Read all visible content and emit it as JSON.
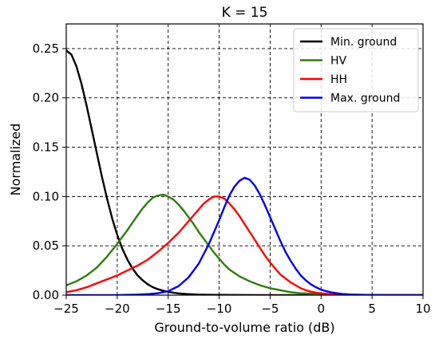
{
  "chart_data": {
    "type": "line",
    "title": "K = 15",
    "xlabel": "Ground-to-volume ratio (dB)",
    "ylabel": "Normalized",
    "xlim": [
      -25,
      10
    ],
    "ylim": [
      0,
      0.275
    ],
    "x_ticks": [
      -25,
      -20,
      -15,
      -10,
      -5,
      0,
      5,
      10
    ],
    "x_tick_labels": [
      "−25",
      "−20",
      "−15",
      "−10",
      "−5",
      "0",
      "5",
      "10"
    ],
    "y_ticks": [
      0,
      0.05,
      0.1,
      0.15,
      0.2,
      0.25
    ],
    "y_tick_labels": [
      "0.00",
      "0.05",
      "0.10",
      "0.15",
      "0.20",
      "0.25"
    ],
    "grid": true,
    "legend_position": "top-right",
    "series": [
      {
        "name": "Min. ground",
        "color": "#000000",
        "x": [
          -25,
          -24.5,
          -24,
          -23.5,
          -23,
          -22.5,
          -22,
          -21.5,
          -21,
          -20.5,
          -20,
          -19.5,
          -19,
          -18.5,
          -18,
          -17.5,
          -17,
          -16.5,
          -16,
          -15.5,
          -15,
          -14,
          -13,
          -12,
          -11,
          -10,
          -8,
          -6,
          -4,
          -2,
          0,
          2,
          5,
          10
        ],
        "y": [
          0.248,
          0.244,
          0.232,
          0.214,
          0.192,
          0.168,
          0.144,
          0.12,
          0.098,
          0.078,
          0.061,
          0.047,
          0.036,
          0.027,
          0.02,
          0.015,
          0.011,
          0.008,
          0.006,
          0.0045,
          0.0033,
          0.0018,
          0.001,
          0.0005,
          0.0003,
          0.0002,
          0.0001,
          0.0,
          0.0,
          0.0,
          0.0,
          0.0,
          0.0,
          0.0
        ]
      },
      {
        "name": "HV",
        "color": "#2e7d0e",
        "x": [
          -25,
          -24,
          -23,
          -22,
          -21,
          -20,
          -19,
          -18,
          -17.5,
          -17,
          -16.5,
          -16,
          -15.5,
          -15,
          -14.5,
          -14,
          -13.5,
          -13,
          -12.5,
          -12,
          -11.5,
          -11,
          -10.5,
          -10,
          -9.5,
          -9,
          -8,
          -7,
          -6,
          -5,
          -4,
          -3,
          -2,
          -1,
          0,
          1,
          2,
          3,
          4,
          5,
          6,
          7,
          8,
          9,
          10
        ],
        "y": [
          0.01,
          0.014,
          0.02,
          0.028,
          0.039,
          0.052,
          0.066,
          0.081,
          0.088,
          0.094,
          0.099,
          0.101,
          0.102,
          0.1,
          0.097,
          0.092,
          0.086,
          0.079,
          0.072,
          0.064,
          0.057,
          0.05,
          0.043,
          0.037,
          0.031,
          0.026,
          0.019,
          0.014,
          0.01,
          0.007,
          0.005,
          0.003,
          0.002,
          0.0015,
          0.001,
          0.0006,
          0.0004,
          0.0002,
          0.0001,
          0.0,
          0.0,
          0.0,
          0.0,
          0.0,
          0.0
        ]
      },
      {
        "name": "HH",
        "color": "#ff0000",
        "x": [
          -25,
          -24,
          -23,
          -22,
          -21,
          -20,
          -19,
          -18,
          -17,
          -16,
          -15,
          -14,
          -13,
          -12.5,
          -12,
          -11.5,
          -11,
          -10.5,
          -10,
          -9.5,
          -9,
          -8.5,
          -8,
          -7.5,
          -7,
          -6.5,
          -6,
          -5.5,
          -5,
          -4.5,
          -4,
          -3.5,
          -3,
          -2.5,
          -2,
          -1.5,
          -1,
          -0.5,
          0,
          1,
          2,
          3,
          4,
          5,
          6,
          7,
          8,
          9,
          10
        ],
        "y": [
          0.003,
          0.005,
          0.008,
          0.012,
          0.016,
          0.02,
          0.025,
          0.03,
          0.036,
          0.044,
          0.053,
          0.063,
          0.075,
          0.081,
          0.087,
          0.093,
          0.097,
          0.1,
          0.1,
          0.098,
          0.093,
          0.087,
          0.08,
          0.072,
          0.064,
          0.056,
          0.048,
          0.04,
          0.033,
          0.027,
          0.021,
          0.017,
          0.013,
          0.01,
          0.007,
          0.005,
          0.0035,
          0.0025,
          0.0018,
          0.0009,
          0.0004,
          0.0002,
          0.0001,
          0.0,
          0.0,
          0.0,
          0.0,
          0.0,
          0.0
        ]
      },
      {
        "name": "Max. ground",
        "color": "#0000ee",
        "x": [
          -25,
          -20,
          -18,
          -17,
          -16,
          -15,
          -14,
          -13,
          -12,
          -11,
          -10,
          -9.5,
          -9,
          -8.5,
          -8,
          -7.5,
          -7,
          -6.5,
          -6,
          -5.5,
          -5,
          -4.5,
          -4,
          -3.5,
          -3,
          -2.5,
          -2,
          -1.5,
          -1,
          -0.5,
          0,
          0.5,
          1,
          2,
          3,
          4,
          5,
          6,
          7,
          8,
          9,
          10
        ],
        "y": [
          0.0,
          0.0,
          0.0005,
          0.001,
          0.002,
          0.004,
          0.009,
          0.018,
          0.032,
          0.052,
          0.076,
          0.089,
          0.101,
          0.11,
          0.116,
          0.119,
          0.117,
          0.111,
          0.102,
          0.091,
          0.079,
          0.067,
          0.055,
          0.044,
          0.035,
          0.027,
          0.02,
          0.015,
          0.011,
          0.008,
          0.0055,
          0.004,
          0.0028,
          0.0013,
          0.0006,
          0.0003,
          0.0001,
          0.0,
          0.0,
          0.0,
          0.0,
          0.0
        ]
      }
    ]
  }
}
